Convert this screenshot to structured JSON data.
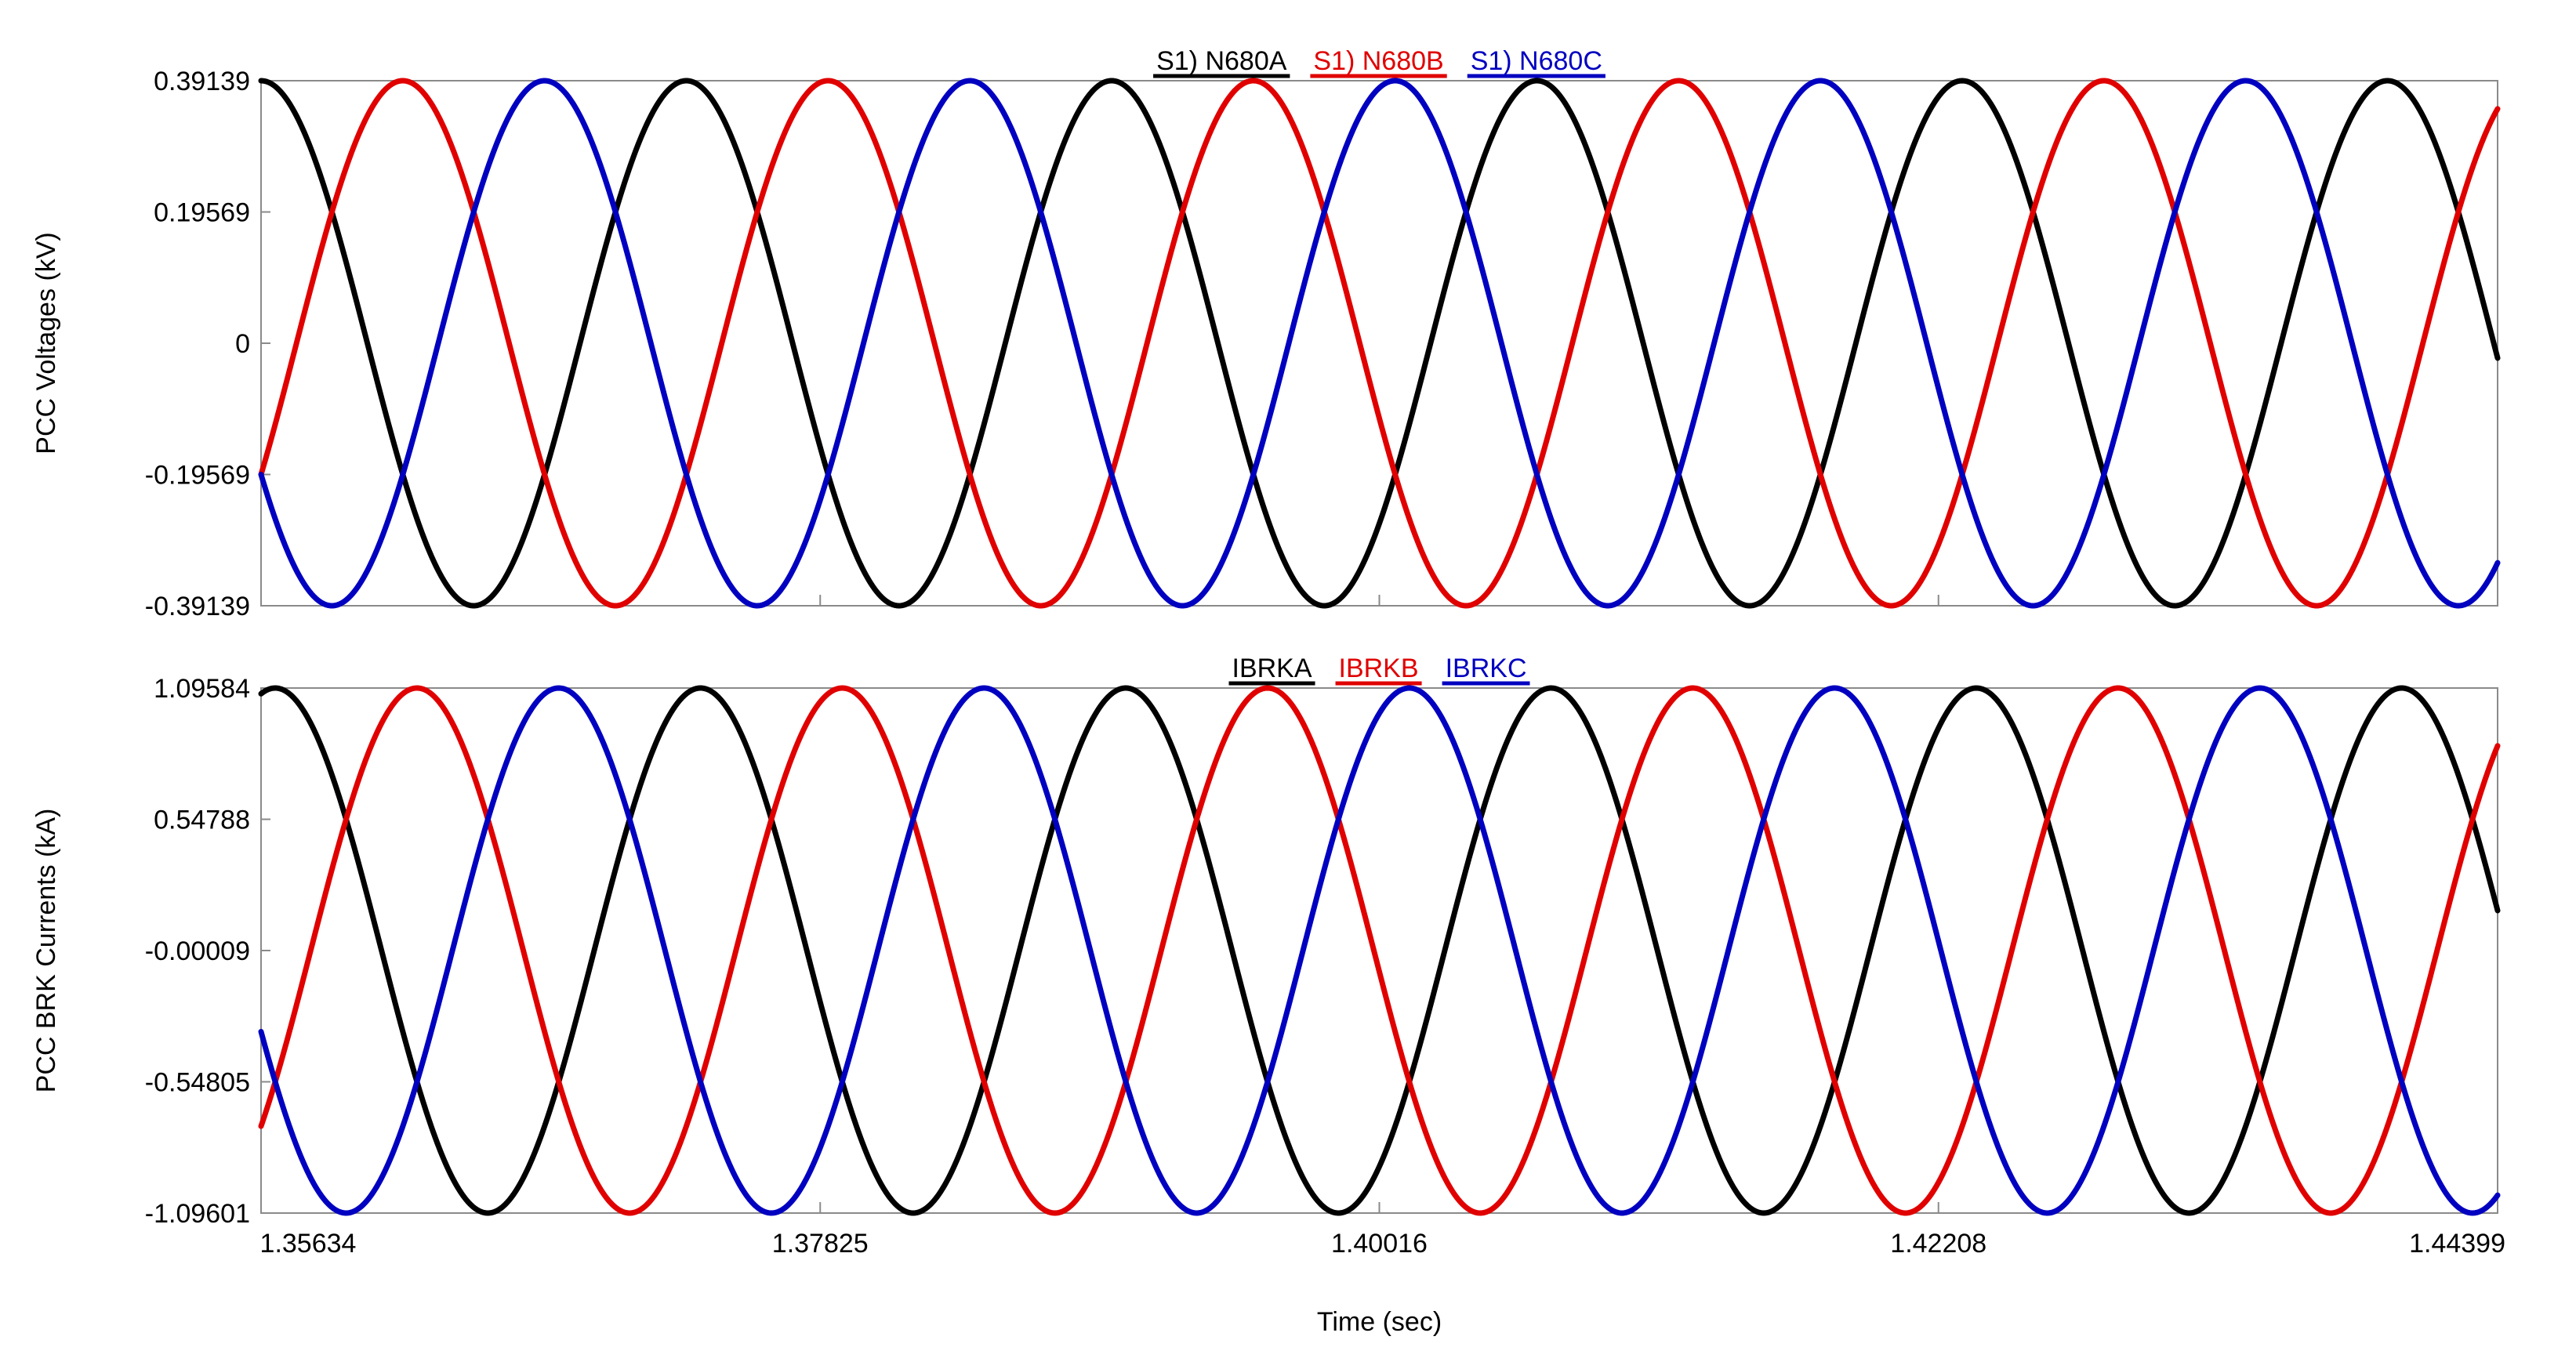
{
  "chart_data": [
    {
      "type": "line",
      "ylabel": "PCC Voltages (kV)",
      "ylim": [
        -0.39139,
        0.39139
      ],
      "yticks": [
        "0.39139",
        "0.19569",
        "0",
        "-0.19569",
        "-0.39139"
      ],
      "xlim": [
        1.35634,
        1.44399
      ],
      "frequency_hz": 60,
      "grid": false,
      "legend_position": "top-center",
      "series": [
        {
          "name": "S1) N680A",
          "color": "#000000",
          "amplitude": 0.39139,
          "phase_deg": 0
        },
        {
          "name": "S1) N680B",
          "color": "#e00000",
          "amplitude": 0.39139,
          "phase_deg": -120
        },
        {
          "name": "S1) N680C",
          "color": "#0000c0",
          "amplitude": 0.39139,
          "phase_deg": 120
        }
      ]
    },
    {
      "type": "line",
      "ylabel": "PCC BRK Currents (kA)",
      "xlabel": "Time (sec)",
      "ylim": [
        -1.09601,
        1.09584
      ],
      "yticks": [
        "1.09584",
        "0.54788",
        "-0.00009",
        "-0.54805",
        "-1.09601"
      ],
      "xticks": [
        "1.35634",
        "1.37825",
        "1.40016",
        "1.42208",
        "1.44399"
      ],
      "xlim": [
        1.35634,
        1.44399
      ],
      "frequency_hz": 60,
      "grid": false,
      "legend_position": "top-center",
      "series": [
        {
          "name": "IBRKA",
          "color": "#000000",
          "amplitude": 1.0959,
          "phase_deg": -12
        },
        {
          "name": "IBRKB",
          "color": "#e00000",
          "amplitude": 1.0959,
          "phase_deg": -132
        },
        {
          "name": "IBRKC",
          "color": "#0000c0",
          "amplitude": 1.0959,
          "phase_deg": 108
        }
      ]
    }
  ]
}
